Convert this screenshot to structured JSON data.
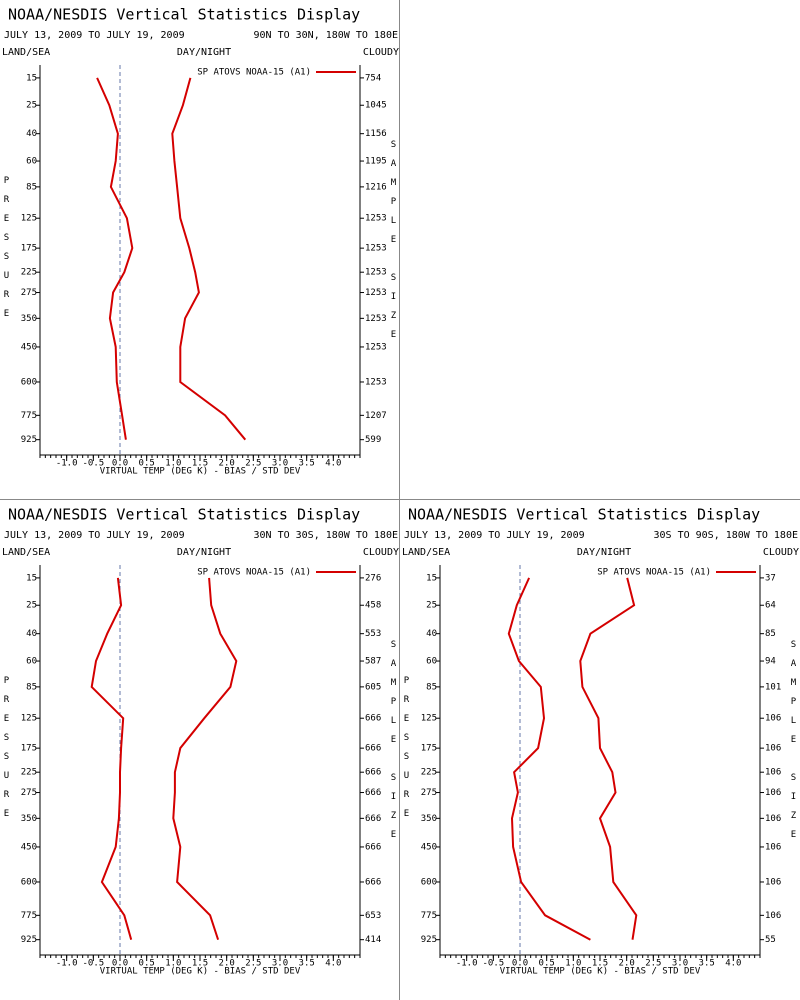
{
  "chart_data": [
    {
      "type": "line",
      "title": "NOAA/NESDIS Vertical Statistics Display",
      "date_range": "JULY 13, 2009 TO JULY 19, 2009",
      "region": "90N TO 30N, 180W TO 180E",
      "land_sea_label": "LAND/SEA",
      "day_night_label": "DAY/NIGHT",
      "cloudy_label": "CLOUDY",
      "ylabel": "PRESSURE",
      "y2label": "SAMPLE SIZE",
      "xlabel": "VIRTUAL TEMP (DEG K) - BIAS / STD DEV",
      "y": [
        15,
        25,
        40,
        60,
        85,
        125,
        175,
        225,
        275,
        350,
        450,
        600,
        775,
        925
      ],
      "sample_sizes": [
        754,
        1045,
        1156,
        1195,
        1216,
        1253,
        1253,
        1253,
        1253,
        1253,
        1253,
        1253,
        1207,
        599
      ],
      "series": [
        {
          "name": "SP ATOVS NOAA-15 (A1)",
          "color": "#d40000",
          "values": [
            -0.43,
            -0.2,
            -0.04,
            -0.08,
            -0.17,
            0.13,
            0.23,
            0.08,
            -0.13,
            -0.19,
            -0.08,
            -0.06,
            0.04,
            0.11
          ],
          "std_dev": [
            1.32,
            1.18,
            0.98,
            1.02,
            1.07,
            1.13,
            1.3,
            1.41,
            1.48,
            1.22,
            1.13,
            1.13,
            1.97,
            2.35
          ]
        }
      ],
      "xlim": [
        -1.5,
        4.5
      ],
      "ylim": [
        11.5,
        1030
      ],
      "xticks": [
        {
          "value": -1,
          "label": "-1.0"
        },
        {
          "value": -0.5,
          "label": "-0.5"
        },
        {
          "value": 0,
          "label": "0.0"
        },
        0.5,
        {
          "value": 1,
          "label": "1.0"
        },
        1.5,
        {
          "value": 2,
          "label": "2.0"
        },
        2.5,
        {
          "value": 3,
          "label": "3.0"
        },
        3.5,
        {
          "value": 4,
          "label": "4.0"
        }
      ],
      "yticks": [
        15,
        25,
        40,
        60,
        85,
        125,
        175,
        225,
        275,
        350,
        450,
        600,
        775,
        925
      ]
    },
    {
      "type": "line",
      "title": "NOAA/NESDIS Vertical Statistics Display",
      "date_range": "JULY 13, 2009 TO JULY 19, 2009",
      "region": "30N TO 30S, 180W TO 180E",
      "land_sea_label": "LAND/SEA",
      "day_night_label": "DAY/NIGHT",
      "cloudy_label": "CLOUDY",
      "ylabel": "PRESSURE",
      "y2label": "SAMPLE SIZE",
      "xlabel": "VIRTUAL TEMP (DEG K) - BIAS / STD DEV",
      "y": [
        15,
        25,
        40,
        60,
        85,
        125,
        175,
        225,
        275,
        350,
        450,
        600,
        775,
        925
      ],
      "sample_sizes": [
        276,
        458,
        553,
        587,
        605,
        666,
        666,
        666,
        666,
        666,
        666,
        666,
        653,
        414
      ],
      "series": [
        {
          "name": "SP ATOVS NOAA-15 (A1)",
          "color": "#d40000",
          "values": [
            -0.04,
            0.02,
            -0.24,
            -0.45,
            -0.53,
            0.06,
            0.02,
            0,
            0,
            -0.02,
            -0.08,
            -0.34,
            0.08,
            0.21
          ],
          "std_dev": [
            1.67,
            1.71,
            1.88,
            2.18,
            2.07,
            1.58,
            1.13,
            1.03,
            1.03,
            1.0,
            1.13,
            1.07,
            1.69,
            1.84
          ]
        }
      ],
      "xlim": [
        -1.5,
        4.5
      ],
      "ylim": [
        11.5,
        1030
      ],
      "xticks": [
        {
          "value": -1,
          "label": "-1.0"
        },
        {
          "value": -0.5,
          "label": "-0.5"
        },
        {
          "value": 0,
          "label": "0.0"
        },
        0.5,
        {
          "value": 1,
          "label": "1.0"
        },
        1.5,
        {
          "value": 2,
          "label": "2.0"
        },
        2.5,
        {
          "value": 3,
          "label": "3.0"
        },
        3.5,
        {
          "value": 4,
          "label": "4.0"
        }
      ],
      "yticks": [
        15,
        25,
        40,
        60,
        85,
        125,
        175,
        225,
        275,
        350,
        450,
        600,
        775,
        925
      ]
    },
    {
      "type": "line",
      "title": "NOAA/NESDIS Vertical Statistics Display",
      "date_range": "JULY 13, 2009 TO JULY 19, 2009",
      "region": "30S TO 90S, 180W TO 180E",
      "land_sea_label": "LAND/SEA",
      "day_night_label": "DAY/NIGHT",
      "cloudy_label": "CLOUDY",
      "ylabel": "PRESSURE",
      "y2label": "SAMPLE SIZE",
      "xlabel": "VIRTUAL TEMP (DEG K) - BIAS / STD DEV",
      "y": [
        15,
        25,
        40,
        60,
        85,
        125,
        175,
        225,
        275,
        350,
        450,
        600,
        775,
        925
      ],
      "sample_sizes": [
        37,
        64,
        85,
        94,
        101,
        106,
        106,
        106,
        106,
        106,
        106,
        106,
        106,
        55
      ],
      "series": [
        {
          "name": "SP ATOVS NOAA-15 (A1)",
          "color": "#d40000",
          "values": [
            0.17,
            -0.06,
            -0.21,
            -0.02,
            0.39,
            0.45,
            0.34,
            -0.11,
            -0.04,
            -0.15,
            -0.13,
            0.02,
            0.47,
            1.32
          ],
          "std_dev": [
            2.01,
            2.14,
            1.32,
            1.13,
            1.17,
            1.47,
            1.5,
            1.73,
            1.79,
            1.5,
            1.69,
            1.75,
            2.18,
            2.11
          ]
        }
      ],
      "xlim": [
        -1.5,
        4.5
      ],
      "ylim": [
        11.5,
        1030
      ],
      "xticks": [
        {
          "value": -1,
          "label": "-1.0"
        },
        {
          "value": -0.5,
          "label": "-0.5"
        },
        {
          "value": 0,
          "label": "0.0"
        },
        0.5,
        {
          "value": 1,
          "label": "1.0"
        },
        1.5,
        {
          "value": 2,
          "label": "2.0"
        },
        2.5,
        {
          "value": 3,
          "label": "3.0"
        },
        3.5,
        {
          "value": 4,
          "label": "4.0"
        }
      ],
      "yticks": [
        15,
        25,
        40,
        60,
        85,
        125,
        175,
        225,
        275,
        350,
        450,
        600,
        775,
        925
      ]
    }
  ]
}
